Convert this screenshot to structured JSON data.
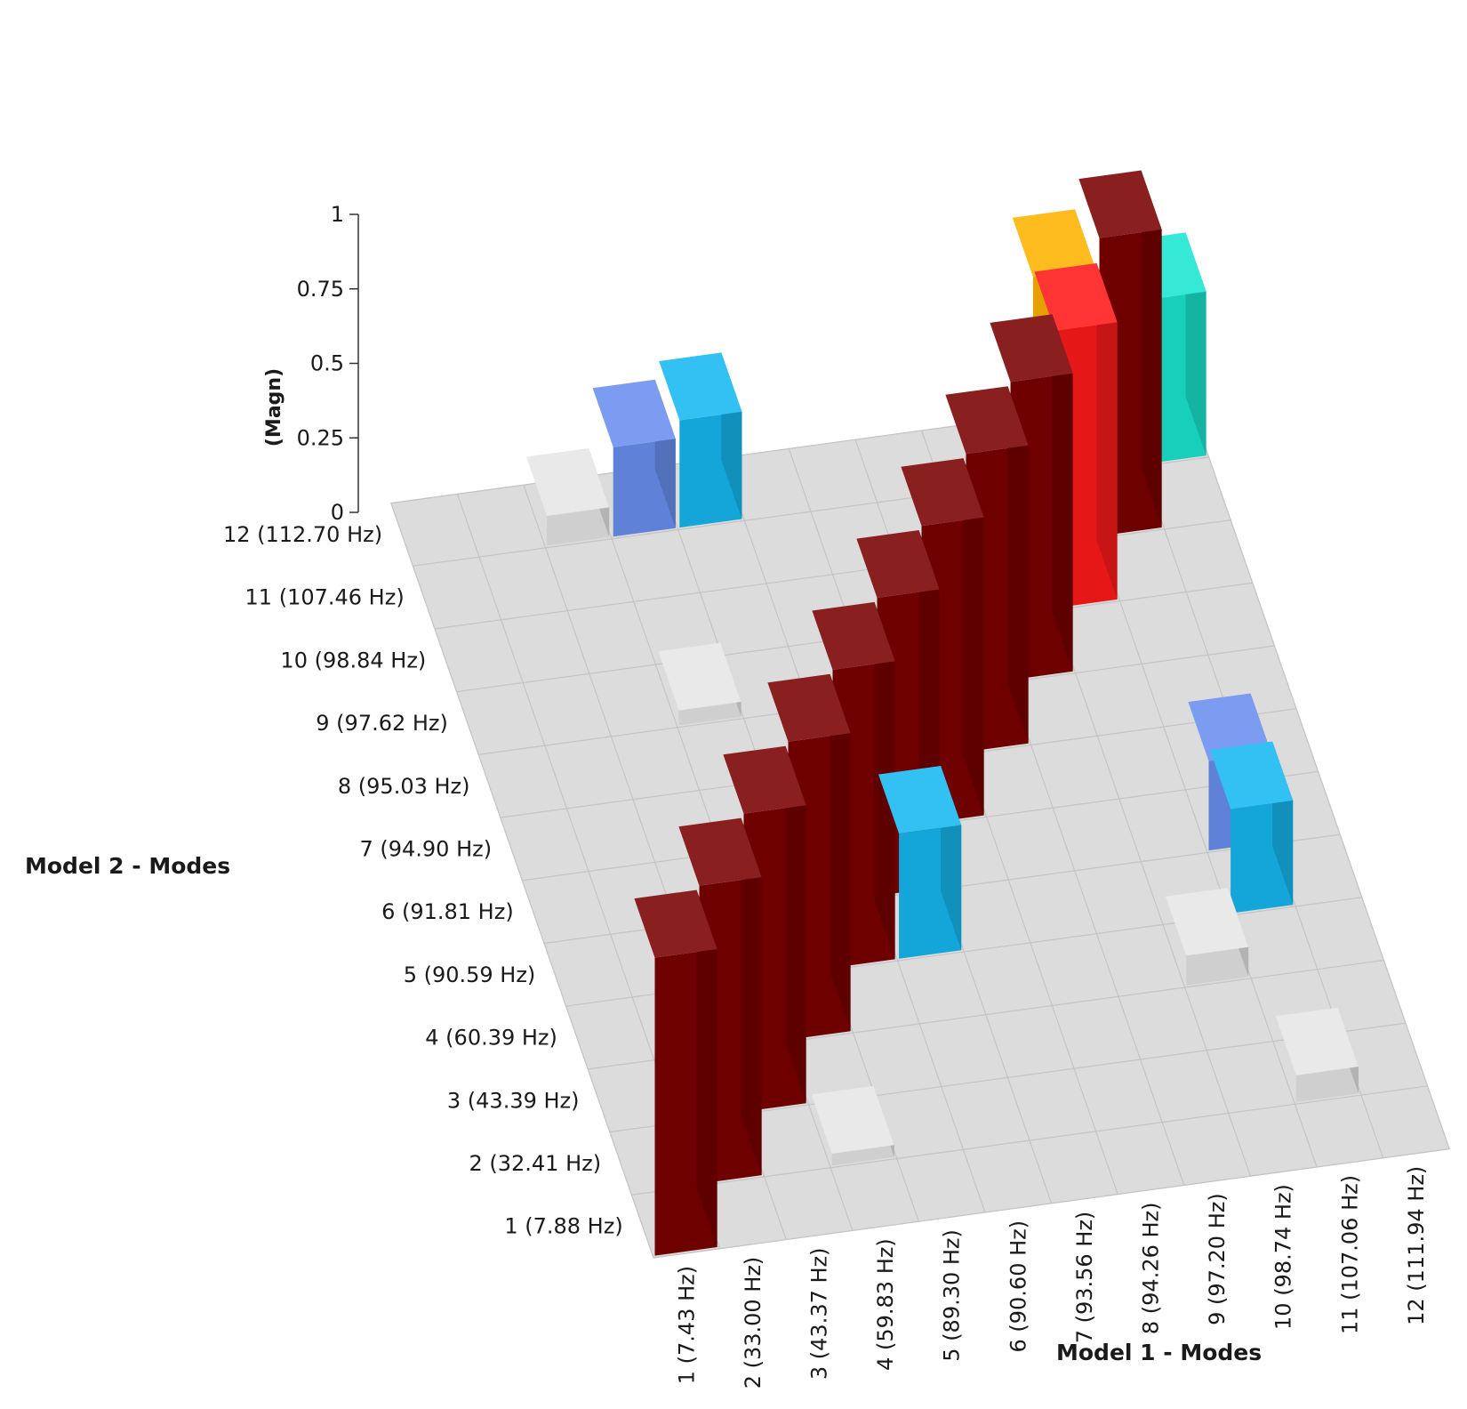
{
  "chart_data": {
    "type": "bar3d",
    "title": "",
    "xlabel": "Model 1 - Modes",
    "ylabel": "Model 2 - Modes",
    "zlabel": "(Magn)",
    "zlim": [
      0,
      1
    ],
    "z_ticks": [
      "0",
      "0.25",
      "0.5",
      "0.75",
      "1"
    ],
    "model1_modes": [
      "1 (7.43 Hz)",
      "2 (33.00 Hz)",
      "3 (43.37 Hz)",
      "4 (59.83 Hz)",
      "5 (89.30 Hz)",
      "6 (90.60 Hz)",
      "7 (93.56 Hz)",
      "8 (94.26 Hz)",
      "9 (97.20 Hz)",
      "10 (98.74 Hz)",
      "11 (107.06 Hz)",
      "12 (111.94 Hz)"
    ],
    "model2_modes": [
      "1 (7.88 Hz)",
      "2 (32.41 Hz)",
      "3 (43.39 Hz)",
      "4 (60.39 Hz)",
      "5 (90.59 Hz)",
      "6 (91.81 Hz)",
      "7 (94.90 Hz)",
      "8 (95.03 Hz)",
      "9 (97.62 Hz)",
      "10 (98.84 Hz)",
      "11 (107.46 Hz)",
      "12 (112.70 Hz)"
    ],
    "bars": [
      {
        "model1": 1,
        "model2": 1,
        "value": 1.0,
        "color": "#7a0000"
      },
      {
        "model1": 2,
        "model2": 2,
        "value": 1.0,
        "color": "#7a0000"
      },
      {
        "model1": 3,
        "model2": 3,
        "value": 1.0,
        "color": "#7a0000"
      },
      {
        "model1": 4,
        "model2": 4,
        "value": 1.0,
        "color": "#7a0000"
      },
      {
        "model1": 5,
        "model2": 5,
        "value": 1.0,
        "color": "#7a0000"
      },
      {
        "model1": 6,
        "model2": 6,
        "value": 1.0,
        "color": "#7a0000"
      },
      {
        "model1": 7,
        "model2": 7,
        "value": 1.0,
        "color": "#7a0000"
      },
      {
        "model1": 8,
        "model2": 8,
        "value": 1.0,
        "color": "#7a0000"
      },
      {
        "model1": 9,
        "model2": 9,
        "value": 1.0,
        "color": "#7a0000"
      },
      {
        "model1": 10,
        "model2": 10,
        "value": 0.93,
        "color": "#ff1a1a"
      },
      {
        "model1": 10,
        "model2": 11,
        "value": 0.9,
        "color": "#ffb300"
      },
      {
        "model1": 11,
        "model2": 11,
        "value": 1.0,
        "color": "#7a0000"
      },
      {
        "model1": 12,
        "model2": 12,
        "value": 0.55,
        "color": "#19e6d0"
      },
      {
        "model1": 6,
        "model2": 5,
        "value": 0.42,
        "color": "#16b8f0"
      },
      {
        "model1": 5,
        "model2": 12,
        "value": 0.36,
        "color": "#16b8f0"
      },
      {
        "model1": 4,
        "model2": 12,
        "value": 0.3,
        "color": "#6a8ff0"
      },
      {
        "model1": 11,
        "model2": 5,
        "value": 0.35,
        "color": "#16b8f0"
      },
      {
        "model1": 11,
        "model2": 6,
        "value": 0.3,
        "color": "#6a8ff0"
      },
      {
        "model1": 3,
        "model2": 12,
        "value": 0.1,
        "color": "#e6e6e6"
      },
      {
        "model1": 11,
        "model2": 2,
        "value": 0.09,
        "color": "#e6e6e6"
      },
      {
        "model1": 10,
        "model2": 4,
        "value": 0.1,
        "color": "#e6e6e6"
      },
      {
        "model1": 4,
        "model2": 9,
        "value": 0.05,
        "color": "#e6e6e6"
      },
      {
        "model1": 4,
        "model2": 2,
        "value": 0.04,
        "color": "#e6e6e6"
      }
    ]
  }
}
